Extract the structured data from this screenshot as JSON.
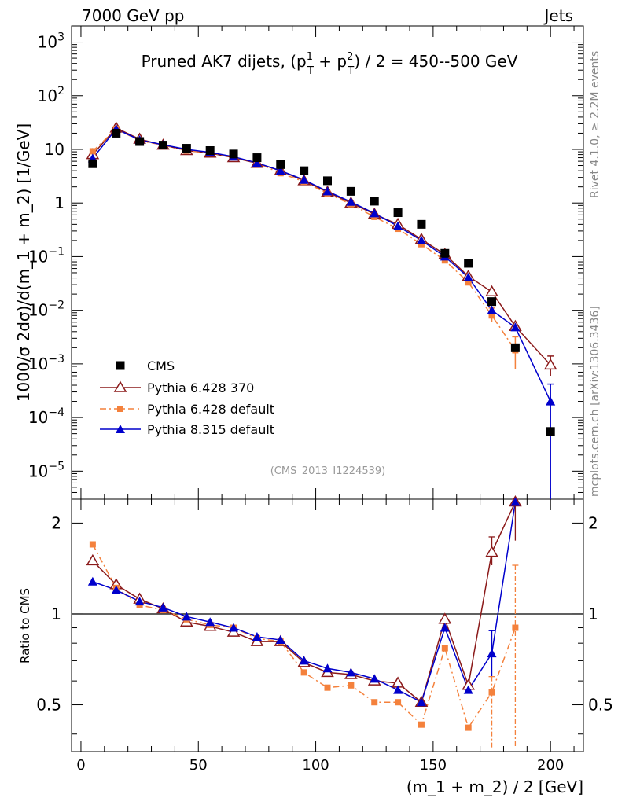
{
  "header": {
    "left": "7000 GeV pp",
    "right": "Jets"
  },
  "side_labels": {
    "rivet": "Rivet 4.1.0, ≥ 2.2M events",
    "mcplots": "mcplots.cern.ch [arXiv:1306.3436]"
  },
  "chart_data": {
    "type": "scatter",
    "title": "Pruned AK7 dijets, (p_T^1 + p_T^2) / 2 = 450--500 GeV",
    "title_parts": {
      "prefix": "Pruned AK7 dijets, (p",
      "sup1": "1",
      "plus": " + p",
      "sup2": "2",
      "suffix": ") / 2 = 450--500 GeV",
      "sub": "T"
    },
    "analysis_id": "(CMS_2013_I1224539)",
    "xlabel": "(m_1 + m_2) / 2 [GeV]",
    "xlim": [
      -4,
      214
    ],
    "x_ticks": [
      0,
      50,
      100,
      150,
      200
    ],
    "x_tick_labels": [
      "0",
      "50",
      "100",
      "150",
      "200"
    ],
    "main_panel": {
      "ylabel": "1000/σ  2dσ)/d(m_1 + m_2) [1/GeV]",
      "yscale": "log",
      "ylim": [
        3e-06,
        2000
      ],
      "y_tick_labels": [
        {
          "value": 1000,
          "mantissa": "10",
          "exp": "3"
        },
        {
          "value": 100,
          "mantissa": "10",
          "exp": "2"
        },
        {
          "value": 10,
          "mantissa": "10",
          "exp": ""
        },
        {
          "value": 1,
          "mantissa": "1",
          "exp": ""
        },
        {
          "value": 0.1,
          "mantissa": "10",
          "exp": "−1"
        },
        {
          "value": 0.01,
          "mantissa": "10",
          "exp": "−2"
        },
        {
          "value": 0.001,
          "mantissa": "10",
          "exp": "−3"
        },
        {
          "value": 0.0001,
          "mantissa": "10",
          "exp": "−4"
        },
        {
          "value": 1e-05,
          "mantissa": "10",
          "exp": "−5"
        }
      ],
      "x": [
        5,
        15,
        25,
        35,
        45,
        55,
        65,
        75,
        85,
        95,
        105,
        115,
        125,
        135,
        145,
        155,
        165,
        175,
        185,
        200
      ],
      "series": [
        {
          "name": "CMS",
          "color": "#000000",
          "marker": "square",
          "values": [
            5.4,
            20,
            14,
            12,
            10.5,
            9.5,
            8.2,
            7,
            5.2,
            4,
            2.6,
            1.65,
            1.08,
            0.66,
            0.4,
            0.115,
            0.075,
            0.0145,
            0.002,
            5.5e-05
          ]
        },
        {
          "name": "Pythia 6.428 370",
          "color": "#8b1a1a",
          "marker": "open-triangle",
          "values": [
            8,
            25,
            15.5,
            12,
            9.5,
            8.5,
            7,
            5.5,
            4,
            2.6,
            1.6,
            1.0,
            0.62,
            0.4,
            0.21,
            0.11,
            0.043,
            0.022,
            0.005,
            0.00095
          ]
        },
        {
          "name": "Pythia 6.428 default",
          "color": "#f4813c",
          "marker": "filled-square",
          "values": [
            9.2,
            24,
            14.5,
            12,
            9.5,
            8.6,
            7.2,
            5.6,
            3.6,
            2.5,
            1.5,
            0.95,
            0.55,
            0.33,
            0.17,
            0.085,
            0.033,
            0.008,
            0.0018,
            null
          ]
        },
        {
          "name": "Pythia 8.315 default",
          "color": "#0000cc",
          "marker": "filled-triangle",
          "values": [
            6.8,
            24,
            15,
            12.2,
            10,
            8.8,
            7.3,
            5.6,
            4,
            2.7,
            1.65,
            1.05,
            0.64,
            0.37,
            0.2,
            0.1,
            0.041,
            0.01,
            0.0048,
            0.0002
          ]
        }
      ],
      "legend_position": "bottom-left"
    },
    "ratio_panel": {
      "ylabel": "Ratio to CMS",
      "yscale": "log",
      "ylim": [
        0.35,
        2.4
      ],
      "y_ticks": [
        0.5,
        1,
        2
      ],
      "y_tick_labels": [
        "0.5",
        "1",
        "2"
      ],
      "reference_line": 1,
      "series": [
        {
          "name": "Pythia 6.428 370",
          "values": [
            1.5,
            1.25,
            1.12,
            1.04,
            0.94,
            0.91,
            0.87,
            0.81,
            0.81,
            0.69,
            0.64,
            0.63,
            0.6,
            0.59,
            0.51,
            0.96,
            0.58,
            1.6,
            2.35,
            null
          ]
        },
        {
          "name": "Pythia 6.428 default",
          "values": [
            1.7,
            1.22,
            1.07,
            1.03,
            0.96,
            0.92,
            0.9,
            0.83,
            0.81,
            0.64,
            0.57,
            0.58,
            0.51,
            0.51,
            0.43,
            0.77,
            0.42,
            0.55,
            0.9,
            null
          ]
        },
        {
          "name": "Pythia 8.315 default",
          "values": [
            1.28,
            1.2,
            1.1,
            1.05,
            0.98,
            0.94,
            0.9,
            0.84,
            0.82,
            0.7,
            0.66,
            0.64,
            0.61,
            0.56,
            0.51,
            0.9,
            0.56,
            0.74,
            2.35,
            null
          ]
        }
      ]
    }
  }
}
